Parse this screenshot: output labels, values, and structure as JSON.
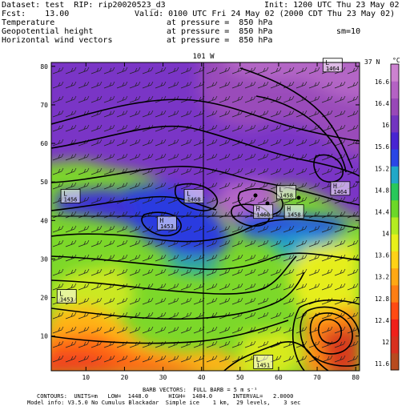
{
  "header": {
    "dataset": "Dataset: test  RIP: rip20020523_d3",
    "init": "Init: 1200 UTC Thu 23 May 02",
    "fcst": "Fcst:    13.00",
    "valid": "Valid: 0100 UTC Fri 24 May 02 (2000 CDT Thu 23 May 02)",
    "field1": "Temperature",
    "field1_level": "at pressure =  850 hPa",
    "field2": "Geopotential height",
    "field2_level": "at pressure =  850 hPa",
    "field2_extra": "sm=10",
    "field3": "Horizontal wind vectors",
    "field3_level": "at pressure =  850 hPa"
  },
  "footer": {
    "line1": "BARB VECTORS:  FULL BARB = 5 m s⁻¹",
    "line2": "CONTOURS:  UNITS=m   LOW=  1448.0      HIGH=  1484.0      INTERVAL=   2.0000",
    "line3": "Model info: V3.5.0 No Cumulus Blackadar  Simple ice    1 km,  29 levels,    3 sec"
  },
  "chart_data": {
    "type": "heatmap",
    "top_label": "101 W",
    "right_label": "37 N",
    "x_ticks": [
      "10",
      "20",
      "30",
      "40",
      "50",
      "60",
      "70",
      "80"
    ],
    "y_ticks": [
      "10",
      "20",
      "30",
      "40",
      "50",
      "60",
      "70",
      "80"
    ],
    "xlim": [
      1,
      81
    ],
    "ylim": [
      1,
      81
    ],
    "reference_lines": {
      "x": 40,
      "y": 41
    },
    "colorbar": {
      "unit": "°C",
      "ticks": [
        "16.6",
        "16.4",
        "16",
        "15.6",
        "15.2",
        "14.8",
        "14.4",
        "14",
        "13.6",
        "13.2",
        "12.8",
        "12.4",
        "12",
        "11.6"
      ],
      "colors": [
        "#b84a1e",
        "#d8301e",
        "#f0201a",
        "#ff4a12",
        "#ff7e14",
        "#ffa814",
        "#ffd216",
        "#e8f01a",
        "#b4ec20",
        "#6cd828",
        "#28c85a",
        "#20a8c8",
        "#2a46e6",
        "#4824d2",
        "#7234c0",
        "#9848b8",
        "#b462c4",
        "#cc82d0"
      ]
    },
    "field_regions": [
      {
        "name": "warm-southwest",
        "color": "#f05a18"
      },
      {
        "name": "green-belt",
        "color": "#7cd82a"
      },
      {
        "name": "blue-trough",
        "color": "#2b3ae0"
      },
      {
        "name": "purple-north",
        "color": "#7a36c6"
      }
    ],
    "height_labels": [
      {
        "kind": "L",
        "value": "1464",
        "x": 74,
        "y": 80
      },
      {
        "kind": "H",
        "value": "1464",
        "x": 76,
        "y": 48
      },
      {
        "kind": "L",
        "value": "1456",
        "x": 6,
        "y": 46
      },
      {
        "kind": "L",
        "value": "1468",
        "x": 38,
        "y": 46
      },
      {
        "kind": "L",
        "value": "1458",
        "x": 62,
        "y": 47
      },
      {
        "kind": "H",
        "value": "1460",
        "x": 56,
        "y": 42
      },
      {
        "kind": "H",
        "value": "1458",
        "x": 64,
        "y": 42
      },
      {
        "kind": "H",
        "value": "1453",
        "x": 31,
        "y": 39
      },
      {
        "kind": "L",
        "value": "1453",
        "x": 5,
        "y": 20
      },
      {
        "kind": "L",
        "value": "1451",
        "x": 56,
        "y": 3
      }
    ]
  }
}
